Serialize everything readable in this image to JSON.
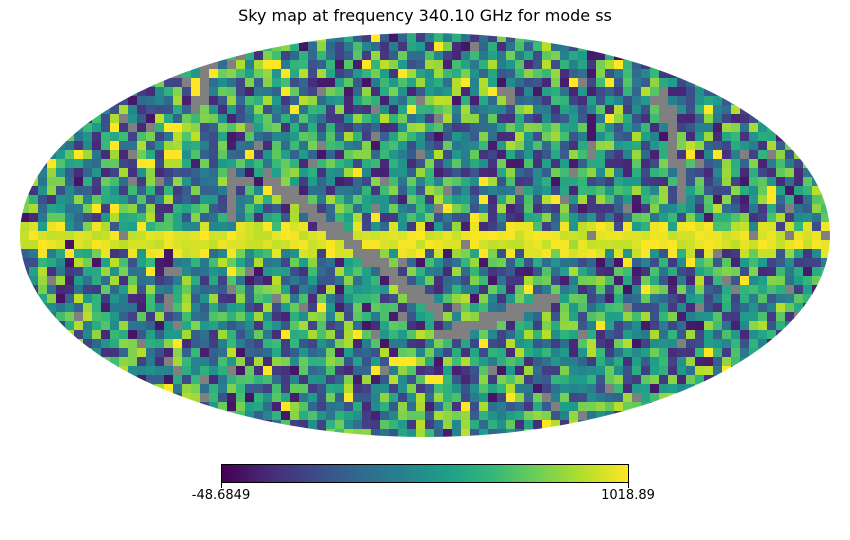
{
  "chart_data": {
    "type": "heatmap",
    "projection": "mollweide",
    "title": "Sky map at frequency 340.10 GHz for mode ss",
    "colormap": "viridis",
    "missing_color": "#808080",
    "colorbar": {
      "min": -48.6849,
      "max": 1018.89,
      "min_label": "-48.6849",
      "max_label": "1018.89",
      "orientation": "horizontal",
      "placement": "bottom"
    },
    "features": [
      {
        "name": "galactic plane band",
        "level": "high (near max)"
      },
      {
        "name": "diagonal masked stripes",
        "level": "missing"
      }
    ]
  }
}
